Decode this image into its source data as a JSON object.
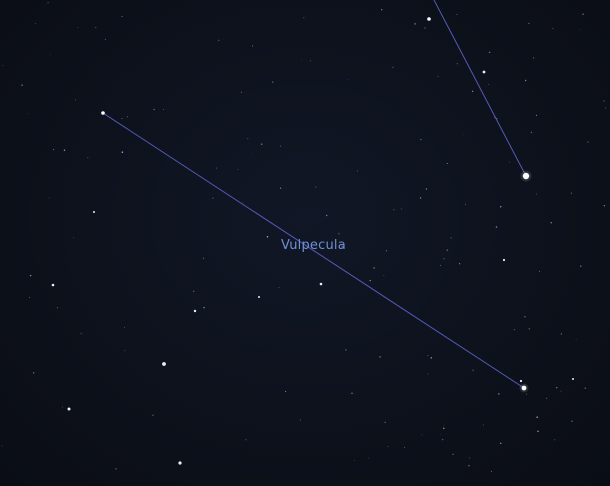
{
  "view": {
    "constellation_label": "Vulpecula",
    "label_color": "#6f8fd6",
    "line_color": "#5b63c9",
    "background_color": "#0c1019"
  }
}
